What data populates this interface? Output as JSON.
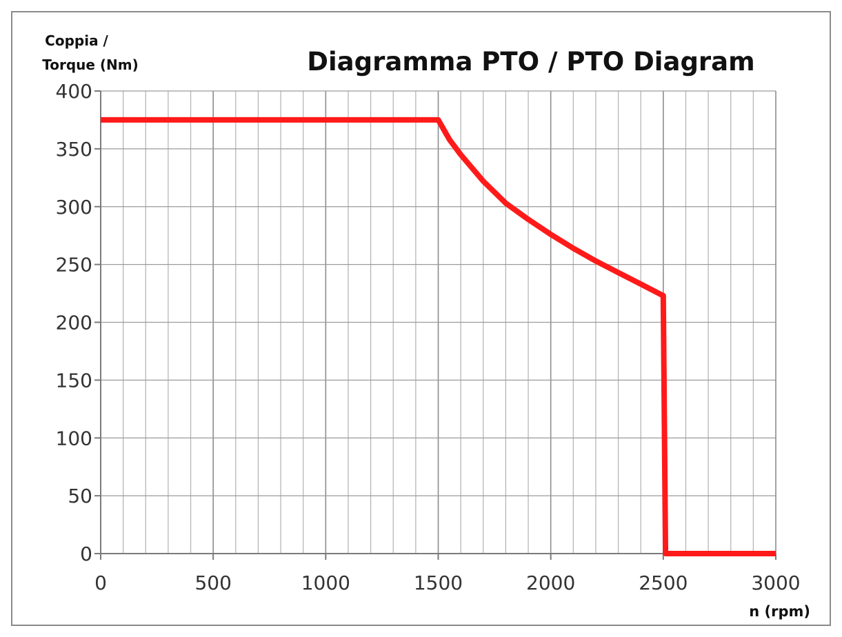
{
  "chart_data": {
    "type": "line",
    "title": "Diagramma PTO / PTO Diagram",
    "ylabel_lines": [
      "Coppia /",
      "Torque (Nm)"
    ],
    "xlabel": "n (rpm)",
    "xlim": [
      0,
      3000
    ],
    "ylim": [
      0,
      400
    ],
    "x_ticks": [
      0,
      500,
      1000,
      1500,
      2000,
      2500,
      3000
    ],
    "x_tick_labels": [
      "0",
      "500",
      "1000",
      "1500",
      "2000",
      "2500",
      "3000"
    ],
    "y_ticks": [
      0,
      50,
      100,
      150,
      200,
      250,
      300,
      350,
      400
    ],
    "y_tick_labels": [
      "0",
      "50",
      "100",
      "150",
      "200",
      "250",
      "300",
      "350",
      "400"
    ],
    "x_minor_step": 100,
    "y_grid_step": 50,
    "grid": true,
    "legend": "none",
    "series": [
      {
        "color": "#ff1a1a",
        "x": [
          0,
          1500,
          1550,
          1600,
          1700,
          1800,
          1900,
          2000,
          2100,
          2200,
          2300,
          2400,
          2500,
          2510,
          3000
        ],
        "y": [
          375,
          375,
          358,
          345,
          322,
          303,
          289,
          276,
          264,
          253,
          243,
          233,
          223,
          0,
          0
        ]
      }
    ]
  }
}
